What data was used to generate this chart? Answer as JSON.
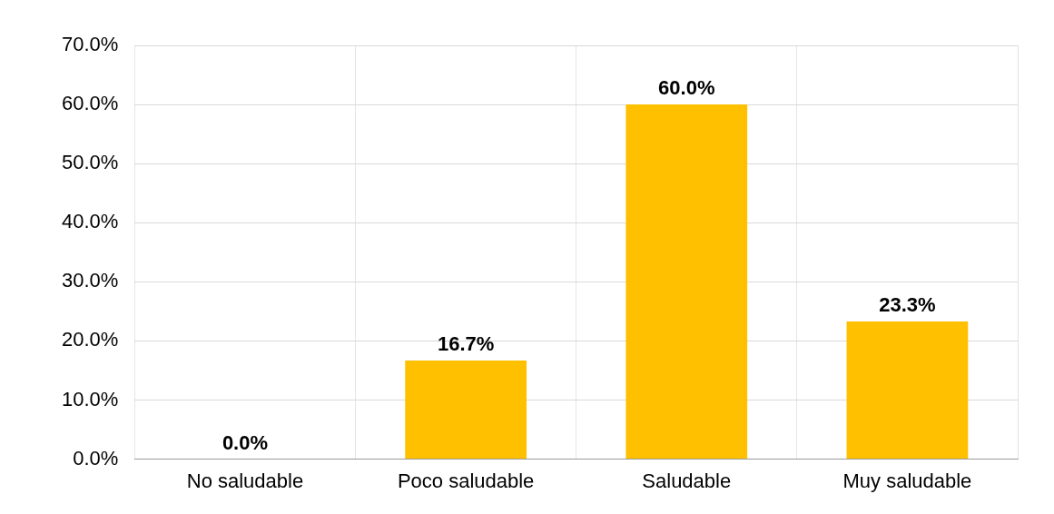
{
  "chart_data": {
    "type": "bar",
    "categories": [
      "No saludable",
      "Poco saludable",
      "Saludable",
      "Muy saludable"
    ],
    "values": [
      0,
      16.7,
      60,
      23.3
    ],
    "color": "#ffc000",
    "value_labels": [
      "0.0%",
      "16.7%",
      "60.0%",
      "23.3%"
    ],
    "ylim": [
      0,
      70
    ],
    "yticks": [
      {
        "value": 0,
        "label": "0.0%"
      },
      {
        "value": 10,
        "label": "10.0%"
      },
      {
        "value": 20,
        "label": "20.0%"
      },
      {
        "value": 30,
        "label": "30.0%"
      },
      {
        "value": 40,
        "label": "40.0%"
      },
      {
        "value": 50,
        "label": "50.0%"
      },
      {
        "value": 60,
        "label": "60.0%"
      },
      {
        "value": 70,
        "label": "70.0%"
      }
    ],
    "grid": true,
    "legend": false
  }
}
